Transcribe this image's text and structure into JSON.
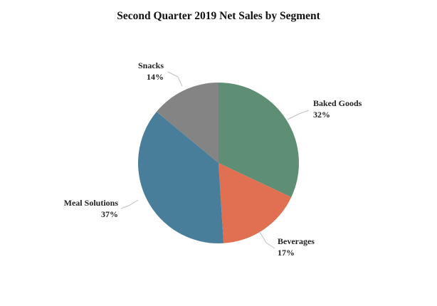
{
  "chart_data": {
    "type": "pie",
    "title": "Second Quarter 2019 Net Sales by Segment",
    "slices": [
      {
        "label": "Baked Goods",
        "value": 32,
        "display": "32%",
        "color": "#5e8f74"
      },
      {
        "label": "Beverages",
        "value": 17,
        "display": "17%",
        "color": "#e07051"
      },
      {
        "label": "Meal Solutions",
        "value": 37,
        "display": "37%",
        "color": "#497e9b"
      },
      {
        "label": "Snacks",
        "value": 14,
        "display": "14%",
        "color": "#848484"
      }
    ],
    "start_angle_deg": 0,
    "direction": "clockwise",
    "legend": "none"
  }
}
